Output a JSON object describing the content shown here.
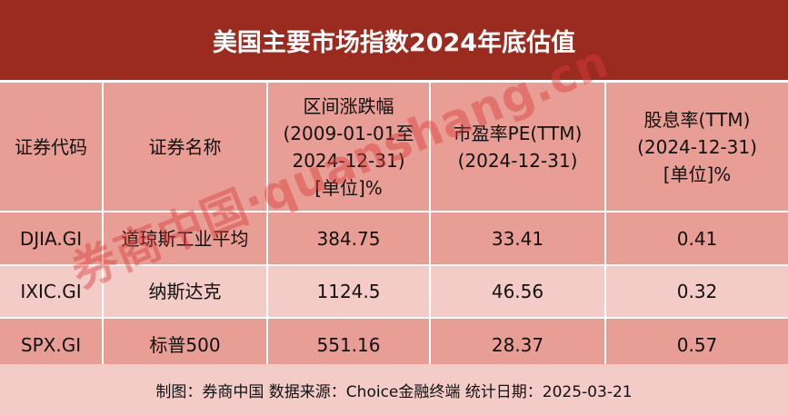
{
  "title": "美国主要市场指数2024年底估值",
  "header": [
    [
      "证券代码"
    ],
    [
      "证券名称"
    ],
    [
      "区间涨跌幅",
      "(2009-01-01至",
      "2024-12-31)",
      "[单位]%"
    ],
    [
      "市盈率PE(TTM)",
      "(2024-12-31)"
    ],
    [
      "股息率(TTM)",
      "(2024-12-31)",
      "[单位]%"
    ]
  ],
  "rows": [
    {
      "code": "DJIA.GI",
      "name": "道琼斯工业平均",
      "change": "384.75",
      "pe": "33.41",
      "yield": "0.41"
    },
    {
      "code": "IXIC.GI",
      "name": "纳斯达克",
      "change": "1124.5",
      "pe": "46.56",
      "yield": "0.32"
    },
    {
      "code": "SPX.GI",
      "name": "标普500",
      "change": "551.16",
      "pe": "28.37",
      "yield": "0.57"
    }
  ],
  "footer": "制图：券商中国 数据来源：Choice金融终端  统计日期：2025-03-21",
  "watermark": "券商中国·quanshang.cn",
  "colors": {
    "title_bg": "#9b2a1f",
    "dark_row": "#e89e94",
    "light_row": "#f4ccc7"
  }
}
